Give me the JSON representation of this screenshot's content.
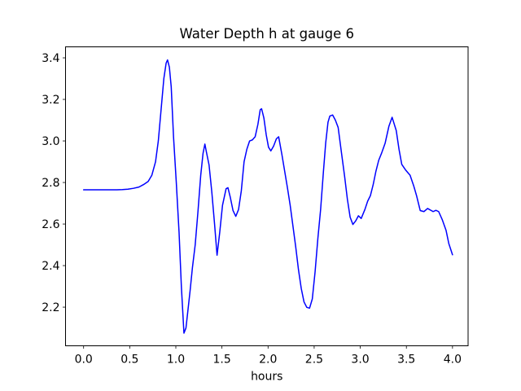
{
  "figure": {
    "title": "Water Depth h at gauge 6",
    "xlabel": "hours"
  },
  "colors": {
    "line": "#0000ff",
    "spine": "#000000",
    "text": "#000000",
    "background": "#ffffff"
  },
  "chart_data": {
    "type": "line",
    "title": "Water Depth h at gauge 6",
    "xlabel": "hours",
    "ylabel": "",
    "grid": false,
    "legend": null,
    "xlim": [
      -0.196,
      4.169
    ],
    "ylim": [
      2.014,
      3.453
    ],
    "x_ticks": {
      "values": [
        0.0,
        0.5,
        1.0,
        1.5,
        2.0,
        2.5,
        3.0,
        3.5,
        4.0
      ],
      "labels": [
        "0.0",
        "0.5",
        "1.0",
        "1.5",
        "2.0",
        "2.5",
        "3.0",
        "3.5",
        "4.0"
      ]
    },
    "y_ticks": {
      "values": [
        2.2,
        2.4,
        2.6,
        2.8,
        3.0,
        3.2,
        3.4
      ],
      "labels": [
        "2.2",
        "2.4",
        "2.6",
        "2.8",
        "3.0",
        "3.2",
        "3.4"
      ]
    },
    "series": [
      {
        "name": "water-depth-h",
        "color": "#0000ff",
        "line_width": 1.5,
        "points": [
          [
            0.0,
            2.765
          ],
          [
            0.06,
            2.765
          ],
          [
            0.12,
            2.765
          ],
          [
            0.18,
            2.765
          ],
          [
            0.24,
            2.765
          ],
          [
            0.3,
            2.765
          ],
          [
            0.36,
            2.765
          ],
          [
            0.42,
            2.766
          ],
          [
            0.48,
            2.768
          ],
          [
            0.54,
            2.772
          ],
          [
            0.6,
            2.778
          ],
          [
            0.65,
            2.79
          ],
          [
            0.7,
            2.805
          ],
          [
            0.74,
            2.835
          ],
          [
            0.78,
            2.9
          ],
          [
            0.81,
            3.0
          ],
          [
            0.84,
            3.15
          ],
          [
            0.87,
            3.3
          ],
          [
            0.895,
            3.375
          ],
          [
            0.91,
            3.39
          ],
          [
            0.93,
            3.355
          ],
          [
            0.95,
            3.26
          ],
          [
            0.975,
            3.02
          ],
          [
            1.005,
            2.8
          ],
          [
            1.035,
            2.56
          ],
          [
            1.06,
            2.3
          ],
          [
            1.088,
            2.075
          ],
          [
            1.11,
            2.1
          ],
          [
            1.13,
            2.18
          ],
          [
            1.155,
            2.28
          ],
          [
            1.18,
            2.39
          ],
          [
            1.21,
            2.5
          ],
          [
            1.24,
            2.66
          ],
          [
            1.27,
            2.835
          ],
          [
            1.295,
            2.94
          ],
          [
            1.315,
            2.985
          ],
          [
            1.33,
            2.95
          ],
          [
            1.36,
            2.885
          ],
          [
            1.39,
            2.755
          ],
          [
            1.42,
            2.6
          ],
          [
            1.447,
            2.45
          ],
          [
            1.476,
            2.56
          ],
          [
            1.506,
            2.69
          ],
          [
            1.545,
            2.77
          ],
          [
            1.565,
            2.775
          ],
          [
            1.59,
            2.73
          ],
          [
            1.62,
            2.665
          ],
          [
            1.65,
            2.637
          ],
          [
            1.68,
            2.67
          ],
          [
            1.71,
            2.76
          ],
          [
            1.74,
            2.9
          ],
          [
            1.77,
            2.96
          ],
          [
            1.8,
            3.0
          ],
          [
            1.83,
            3.005
          ],
          [
            1.86,
            3.02
          ],
          [
            1.89,
            3.08
          ],
          [
            1.915,
            3.15
          ],
          [
            1.93,
            3.155
          ],
          [
            1.955,
            3.11
          ],
          [
            1.98,
            3.03
          ],
          [
            2.005,
            2.97
          ],
          [
            2.03,
            2.952
          ],
          [
            2.06,
            2.975
          ],
          [
            2.09,
            3.01
          ],
          [
            2.115,
            3.02
          ],
          [
            2.15,
            2.935
          ],
          [
            2.18,
            2.855
          ],
          [
            2.21,
            2.775
          ],
          [
            2.24,
            2.69
          ],
          [
            2.27,
            2.59
          ],
          [
            2.3,
            2.49
          ],
          [
            2.33,
            2.38
          ],
          [
            2.36,
            2.29
          ],
          [
            2.39,
            2.225
          ],
          [
            2.42,
            2.199
          ],
          [
            2.45,
            2.195
          ],
          [
            2.48,
            2.24
          ],
          [
            2.51,
            2.37
          ],
          [
            2.54,
            2.53
          ],
          [
            2.57,
            2.67
          ],
          [
            2.6,
            2.85
          ],
          [
            2.625,
            2.99
          ],
          [
            2.65,
            3.09
          ],
          [
            2.67,
            3.12
          ],
          [
            2.7,
            3.125
          ],
          [
            2.73,
            3.1
          ],
          [
            2.76,
            3.065
          ],
          [
            2.8,
            2.93
          ],
          [
            2.83,
            2.83
          ],
          [
            2.86,
            2.72
          ],
          [
            2.89,
            2.633
          ],
          [
            2.92,
            2.598
          ],
          [
            2.95,
            2.615
          ],
          [
            2.98,
            2.64
          ],
          [
            3.01,
            2.627
          ],
          [
            3.05,
            2.67
          ],
          [
            3.08,
            2.71
          ],
          [
            3.11,
            2.737
          ],
          [
            3.14,
            2.79
          ],
          [
            3.17,
            2.855
          ],
          [
            3.2,
            2.907
          ],
          [
            3.23,
            2.94
          ],
          [
            3.27,
            2.99
          ],
          [
            3.31,
            3.07
          ],
          [
            3.345,
            3.114
          ],
          [
            3.39,
            3.05
          ],
          [
            3.42,
            2.96
          ],
          [
            3.45,
            2.887
          ],
          [
            3.49,
            2.861
          ],
          [
            3.54,
            2.835
          ],
          [
            3.58,
            2.783
          ],
          [
            3.61,
            2.737
          ],
          [
            3.65,
            2.665
          ],
          [
            3.69,
            2.66
          ],
          [
            3.73,
            2.675
          ],
          [
            3.79,
            2.66
          ],
          [
            3.82,
            2.666
          ],
          [
            3.85,
            2.66
          ],
          [
            3.89,
            2.62
          ],
          [
            3.93,
            2.57
          ],
          [
            3.96,
            2.506
          ],
          [
            4.0,
            2.452
          ]
        ]
      }
    ]
  }
}
